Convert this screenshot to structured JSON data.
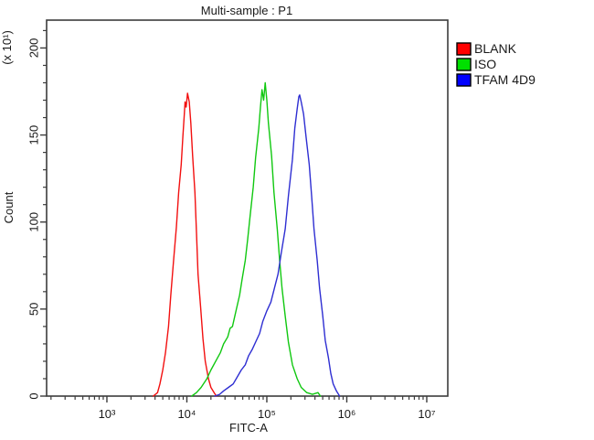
{
  "figure": {
    "title": "Multi-sample : P1",
    "x_axis": {
      "label": "FITC-A",
      "tick_labels": [
        "10³",
        "10⁴",
        "10⁵",
        "10⁶",
        "10⁷"
      ]
    },
    "y_axis": {
      "label": "Count",
      "unit_label": "(x 10¹)",
      "tick_labels": [
        "0",
        "50",
        "100",
        "150",
        "200"
      ]
    },
    "legend": [
      {
        "label": "BLANK",
        "color": "#ff0000"
      },
      {
        "label": "ISO",
        "color": "#00e000"
      },
      {
        "label": "TFAM 4D9",
        "color": "#0000ff"
      }
    ]
  },
  "chart_data": {
    "type": "line",
    "subtype": "flow-cytometry-histogram-overlay",
    "title": "Multi-sample : P1",
    "xlabel": "FITC-A",
    "ylabel": "Count",
    "y_unit_label": "(x 10¹)",
    "x_scale": "log10",
    "x_range_log10": [
      2.246,
      7.263
    ],
    "x_decades": [
      3,
      4,
      5,
      6,
      7
    ],
    "ylim": [
      0,
      216
    ],
    "y_major_ticks": [
      0,
      50,
      100,
      150,
      200
    ],
    "y_minor_step": 10,
    "grid": false,
    "legend_position": "outside-top-right",
    "series": [
      {
        "name": "BLANK",
        "color": "#f21010",
        "peak_x": 10200,
        "peak_y": 174,
        "points": [
          [
            3800,
            0
          ],
          [
            4300,
            2
          ],
          [
            4600,
            7
          ],
          [
            5000,
            15
          ],
          [
            5400,
            25
          ],
          [
            5900,
            40
          ],
          [
            6300,
            58
          ],
          [
            6800,
            77
          ],
          [
            7400,
            97
          ],
          [
            7900,
            117
          ],
          [
            8500,
            133
          ],
          [
            8900,
            149
          ],
          [
            9300,
            162
          ],
          [
            9500,
            169
          ],
          [
            9800,
            166
          ],
          [
            10200,
            174
          ],
          [
            10700,
            169
          ],
          [
            11200,
            157
          ],
          [
            11800,
            138
          ],
          [
            12600,
            117
          ],
          [
            13200,
            94
          ],
          [
            13800,
            70
          ],
          [
            14800,
            52
          ],
          [
            15900,
            33
          ],
          [
            17000,
            20
          ],
          [
            18600,
            10
          ],
          [
            20000,
            5
          ],
          [
            21900,
            2
          ],
          [
            23400,
            0
          ]
        ]
      },
      {
        "name": "ISO",
        "color": "#10c810",
        "peak_x": 95500,
        "peak_y": 180,
        "points": [
          [
            11500,
            0
          ],
          [
            13200,
            2
          ],
          [
            15100,
            5
          ],
          [
            17800,
            10
          ],
          [
            20000,
            15
          ],
          [
            22900,
            20
          ],
          [
            26300,
            25
          ],
          [
            28800,
            30
          ],
          [
            32400,
            34
          ],
          [
            34700,
            39
          ],
          [
            37200,
            40
          ],
          [
            38900,
            44
          ],
          [
            41700,
            50
          ],
          [
            45700,
            58
          ],
          [
            49000,
            67
          ],
          [
            53700,
            78
          ],
          [
            57500,
            90
          ],
          [
            61700,
            103
          ],
          [
            67600,
            120
          ],
          [
            72400,
            137
          ],
          [
            79400,
            154
          ],
          [
            83200,
            166
          ],
          [
            87100,
            176
          ],
          [
            91200,
            170
          ],
          [
            95500,
            180
          ],
          [
            100000,
            170
          ],
          [
            104700,
            157
          ],
          [
            114800,
            138
          ],
          [
            123000,
            117
          ],
          [
            134900,
            96
          ],
          [
            144500,
            78
          ],
          [
            154900,
            62
          ],
          [
            169800,
            46
          ],
          [
            186200,
            31
          ],
          [
            208900,
            18
          ],
          [
            239900,
            10
          ],
          [
            269200,
            5
          ],
          [
            316200,
            2
          ],
          [
            371500,
            1
          ],
          [
            436500,
            2
          ],
          [
            467700,
            0
          ]
        ]
      },
      {
        "name": "TFAM 4D9",
        "color": "#2e2ed2",
        "peak_x": 257000,
        "peak_y": 173,
        "points": [
          [
            22400,
            0
          ],
          [
            25700,
            1
          ],
          [
            28800,
            3
          ],
          [
            33100,
            5
          ],
          [
            38000,
            7
          ],
          [
            42700,
            11
          ],
          [
            47900,
            15
          ],
          [
            53700,
            18
          ],
          [
            58900,
            23
          ],
          [
            66100,
            27
          ],
          [
            72400,
            31
          ],
          [
            81300,
            36
          ],
          [
            89100,
            43
          ],
          [
            100000,
            49
          ],
          [
            112200,
            54
          ],
          [
            123000,
            61
          ],
          [
            138000,
            70
          ],
          [
            151400,
            82
          ],
          [
            169800,
            96
          ],
          [
            186200,
            115
          ],
          [
            208900,
            136
          ],
          [
            223900,
            154
          ],
          [
            239900,
            165
          ],
          [
            251200,
            172
          ],
          [
            257000,
            173
          ],
          [
            269200,
            169
          ],
          [
            288400,
            162
          ],
          [
            309000,
            149
          ],
          [
            338800,
            133
          ],
          [
            363100,
            115
          ],
          [
            389000,
            96
          ],
          [
            426600,
            78
          ],
          [
            457100,
            62
          ],
          [
            501200,
            46
          ],
          [
            537000,
            32
          ],
          [
            588800,
            22
          ],
          [
            631000,
            13
          ],
          [
            676100,
            7
          ],
          [
            741300,
            3
          ],
          [
            812800,
            0
          ]
        ]
      }
    ]
  }
}
